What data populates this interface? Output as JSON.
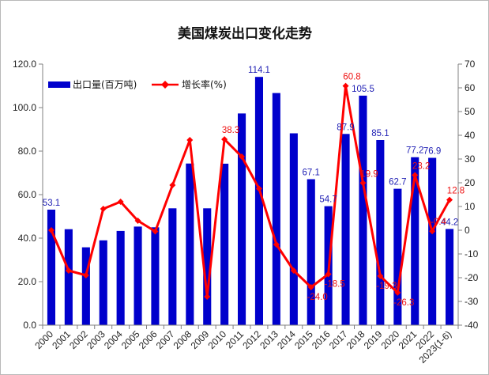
{
  "chart_data": {
    "type": "bar+line",
    "title": "美国煤炭出口变化走势",
    "categories": [
      "2000",
      "2001",
      "2002",
      "2003",
      "2004",
      "2005",
      "2006",
      "2007",
      "2008",
      "2009",
      "2010",
      "2011",
      "2012",
      "2013",
      "2014",
      "2015",
      "2016",
      "2017",
      "2018",
      "2019",
      "2020",
      "2021",
      "2022",
      "2023(1-6)"
    ],
    "series": [
      {
        "name": "出口量(百万吨)",
        "type": "bar",
        "axis": "left",
        "color": "#0000cc",
        "values": [
          53.1,
          44.1,
          35.8,
          39.0,
          43.3,
          45.3,
          45.0,
          53.7,
          74.3,
          53.7,
          74.2,
          97.3,
          114.1,
          106.7,
          88.2,
          67.1,
          54.7,
          87.9,
          105.5,
          85.1,
          62.7,
          77.2,
          76.9,
          44.2
        ],
        "labels": {
          "0": "53.1",
          "12": "114.1",
          "15": "67.1",
          "16": "54.7",
          "17": "87.9",
          "18": "105.5",
          "19": "85.1",
          "20": "62.7",
          "21": "77.2",
          "22": "76.9",
          "23": "44.2"
        }
      },
      {
        "name": "增长率(%)",
        "type": "line",
        "axis": "right",
        "color": "#ff0000",
        "values": [
          0,
          -17,
          -19,
          9,
          12,
          4,
          -0.5,
          19,
          38,
          -28,
          38.3,
          31,
          17.5,
          -6,
          -17,
          -24.0,
          -18.5,
          60.8,
          19.9,
          -19.3,
          -26.3,
          23.2,
          -0.4,
          12.8
        ],
        "labels": {
          "10": "38.3",
          "15": "-24.0",
          "16": "-18.5",
          "17": "60.8",
          "18": "19.9",
          "19": "-19.3",
          "20": "-26.3",
          "21": "23.2",
          "22": "-0.4",
          "23": "12.8"
        }
      }
    ],
    "y_left": {
      "min": 0,
      "max": 120,
      "step": 20,
      "tick_labels": [
        "0.0",
        "20.0",
        "40.0",
        "60.0",
        "80.0",
        "100.0",
        "120.0"
      ]
    },
    "y_right": {
      "min": -40,
      "max": 70,
      "step": 10,
      "tick_labels": [
        "-40",
        "-30",
        "-20",
        "-10",
        "0",
        "10",
        "20",
        "30",
        "40",
        "50",
        "60",
        "70"
      ]
    },
    "legend": "top-left",
    "grid": false
  }
}
